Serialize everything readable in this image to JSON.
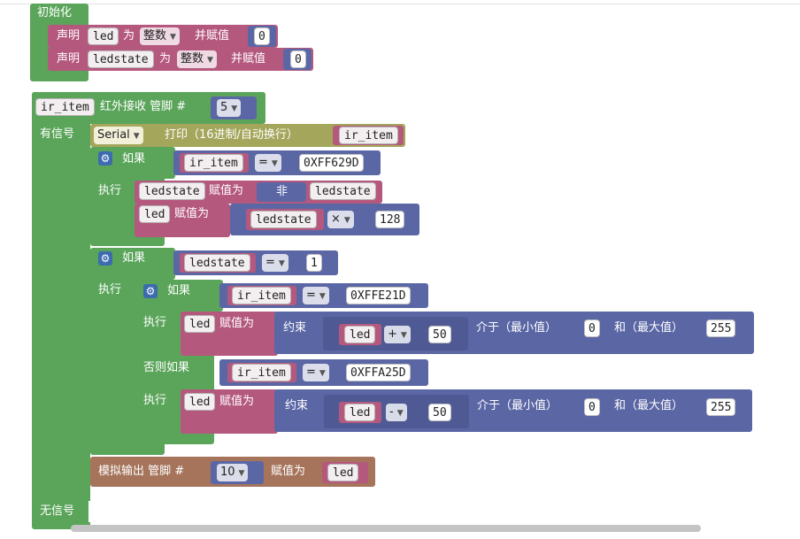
{
  "init": {
    "label": "初始化",
    "decl1": {
      "kw": "声明",
      "var": "led",
      "as": "为",
      "type": "整数",
      "assign": "并赋值",
      "value": "0"
    },
    "decl2": {
      "kw": "声明",
      "var": "ledstate",
      "as": "为",
      "type": "整数",
      "assign": "并赋值",
      "value": "0"
    }
  },
  "ir": {
    "var": "ir_item",
    "label": "红外接收 管脚 #",
    "pin": "5",
    "has_signal": "有信号",
    "no_signal": "无信号"
  },
  "serial": {
    "port": "Serial",
    "label": "打印（16进制/自动换行）",
    "arg": "ir_item"
  },
  "if1": {
    "kw": "如果",
    "var": "ir_item",
    "op": "=",
    "value": "0XFF629D",
    "do": "执行",
    "set1": {
      "var": "ledstate",
      "assign": "赋值为",
      "not": "非",
      "arg": "ledstate"
    },
    "set2": {
      "var": "led",
      "assign": "赋值为",
      "arg": "ledstate",
      "op": "×",
      "value": "128"
    }
  },
  "if2": {
    "kw": "如果",
    "var": "ledstate",
    "op": "=",
    "value": "1",
    "do": "执行",
    "inner": {
      "kw": "如果",
      "var": "ir_item",
      "op": "=",
      "value": "0XFFE21D",
      "do": "执行",
      "set1": {
        "var": "led",
        "assign": "赋值为",
        "constrain": "约束",
        "arg": "led",
        "op": "+",
        "value": "50",
        "between": "介于（最小值）",
        "min": "0",
        "and": "和（最大值）",
        "max": "255"
      },
      "elseif": "否则如果",
      "var2": "ir_item",
      "op2": "=",
      "value2": "0XFFA25D",
      "do2": "执行",
      "set2": {
        "var": "led",
        "assign": "赋值为",
        "constrain": "约束",
        "arg": "led",
        "op": "-",
        "value": "50",
        "between": "介于（最小值）",
        "min": "0",
        "and": "和（最大值）",
        "max": "255"
      }
    }
  },
  "analog": {
    "label": "模拟输出 管脚 #",
    "pin": "10",
    "assign": "赋值为",
    "arg": "led"
  },
  "icons": {
    "dropdown": "dropdown-arrow-icon",
    "gear": "gear-icon"
  },
  "colors": {
    "logic": "#5ba55b",
    "variables": "#b5587e",
    "math": "#5b67a5",
    "serial": "#a4a65b",
    "io": "#a5745b"
  }
}
